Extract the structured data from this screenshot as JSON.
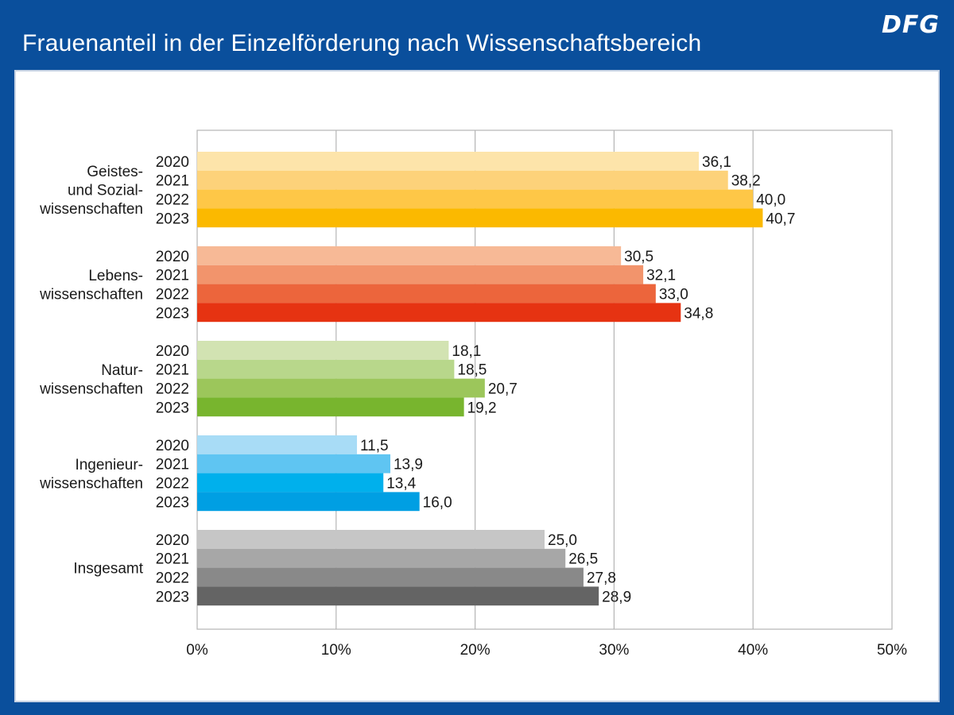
{
  "header": {
    "title": "Frauenanteil in der Einzelförderung nach Wissenschaftsbereich",
    "logo": "DFG"
  },
  "chart_data": {
    "type": "bar",
    "orientation": "horizontal",
    "title": "Frauenanteil in der Einzelförderung nach Wissenschaftsbereich",
    "xlim": [
      0,
      50
    ],
    "xticks": [
      "0%",
      "10%",
      "20%",
      "30%",
      "40%",
      "50%"
    ],
    "grid": true,
    "years": [
      "2020",
      "2021",
      "2022",
      "2023"
    ],
    "groups": [
      {
        "label": [
          "Geistes-",
          "und Sozial-",
          "wissenschaften"
        ],
        "values": [
          36.1,
          38.2,
          40.0,
          40.7
        ],
        "value_labels": [
          "36,1",
          "38,2",
          "40,0",
          "40,7"
        ],
        "colors": [
          "#fde4aa",
          "#fdd27a",
          "#fec747",
          "#fbb900"
        ]
      },
      {
        "label": [
          "Lebens-",
          "wissenschaften"
        ],
        "values": [
          30.5,
          32.1,
          33.0,
          34.8
        ],
        "value_labels": [
          "30,5",
          "32,1",
          "33,0",
          "34,8"
        ],
        "colors": [
          "#f7b996",
          "#f2946c",
          "#ec653c",
          "#e63312"
        ]
      },
      {
        "label": [
          "Natur-",
          "wissenschaften"
        ],
        "values": [
          18.1,
          18.5,
          20.7,
          19.2
        ],
        "value_labels": [
          "18,1",
          "18,5",
          "20,7",
          "19,2"
        ],
        "colors": [
          "#d2e3b2",
          "#b8d78b",
          "#9cc65b",
          "#78b52e"
        ]
      },
      {
        "label": [
          "Ingenieur-",
          "wissenschaften"
        ],
        "values": [
          11.5,
          13.9,
          13.4,
          16.0
        ],
        "value_labels": [
          "11,5",
          "13,9",
          "13,4",
          "16,0"
        ],
        "colors": [
          "#a8dcf6",
          "#5fc5f2",
          "#00b0ec",
          "#009fe3"
        ]
      },
      {
        "label": [
          "Insgesamt"
        ],
        "values": [
          25.0,
          26.5,
          27.8,
          28.9
        ],
        "value_labels": [
          "25,0",
          "26,5",
          "27,8",
          "28,9"
        ],
        "colors": [
          "#c6c6c6",
          "#a7a7a7",
          "#898989",
          "#646464"
        ]
      }
    ]
  }
}
